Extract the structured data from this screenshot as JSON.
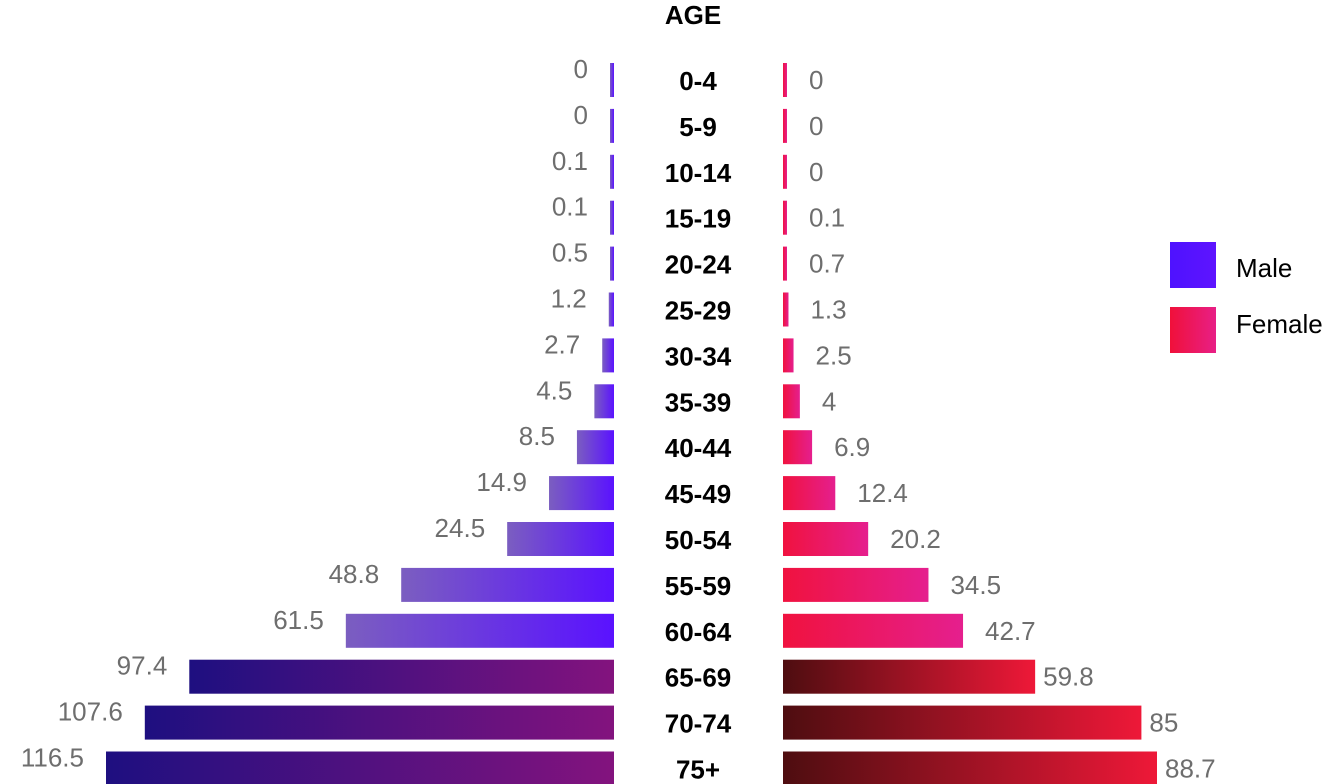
{
  "chart_data": {
    "type": "bar",
    "orientation": "horizontal",
    "layout": "population-pyramid",
    "title": "AGE",
    "categories": [
      "0-4",
      "5-9",
      "10-14",
      "15-19",
      "20-24",
      "25-29",
      "30-34",
      "35-39",
      "40-44",
      "45-49",
      "50-54",
      "55-59",
      "60-64",
      "65-69",
      "70-74",
      "75+"
    ],
    "series": [
      {
        "name": "Male",
        "side": "left",
        "color": "#5a12ff",
        "values": [
          0,
          0,
          0.1,
          0.1,
          0.5,
          1.2,
          2.7,
          4.5,
          8.5,
          14.9,
          24.5,
          48.8,
          61.5,
          97.4,
          107.6,
          116.5
        ],
        "labels": [
          "0",
          "0",
          "0.1",
          "0.1",
          "0.5",
          "1.2",
          "2.7",
          "4.5",
          "8.5",
          "14.9",
          "24.5",
          "48.8",
          "61.5",
          "97.4",
          "107.6",
          "116.5"
        ]
      },
      {
        "name": "Female",
        "side": "right",
        "color": "#ee1446",
        "values": [
          0,
          0,
          0,
          0.1,
          0.7,
          1.3,
          2.5,
          4,
          6.9,
          12.4,
          20.2,
          34.5,
          42.7,
          59.8,
          85,
          88.7
        ],
        "labels": [
          "0",
          "0",
          "0",
          "0.1",
          "0.7",
          "1.3",
          "2.5",
          "4",
          "6.9",
          "12.4",
          "20.2",
          "34.5",
          "42.7",
          "59.8",
          "85",
          "88.7"
        ]
      }
    ],
    "grid": false,
    "legend": "right"
  }
}
